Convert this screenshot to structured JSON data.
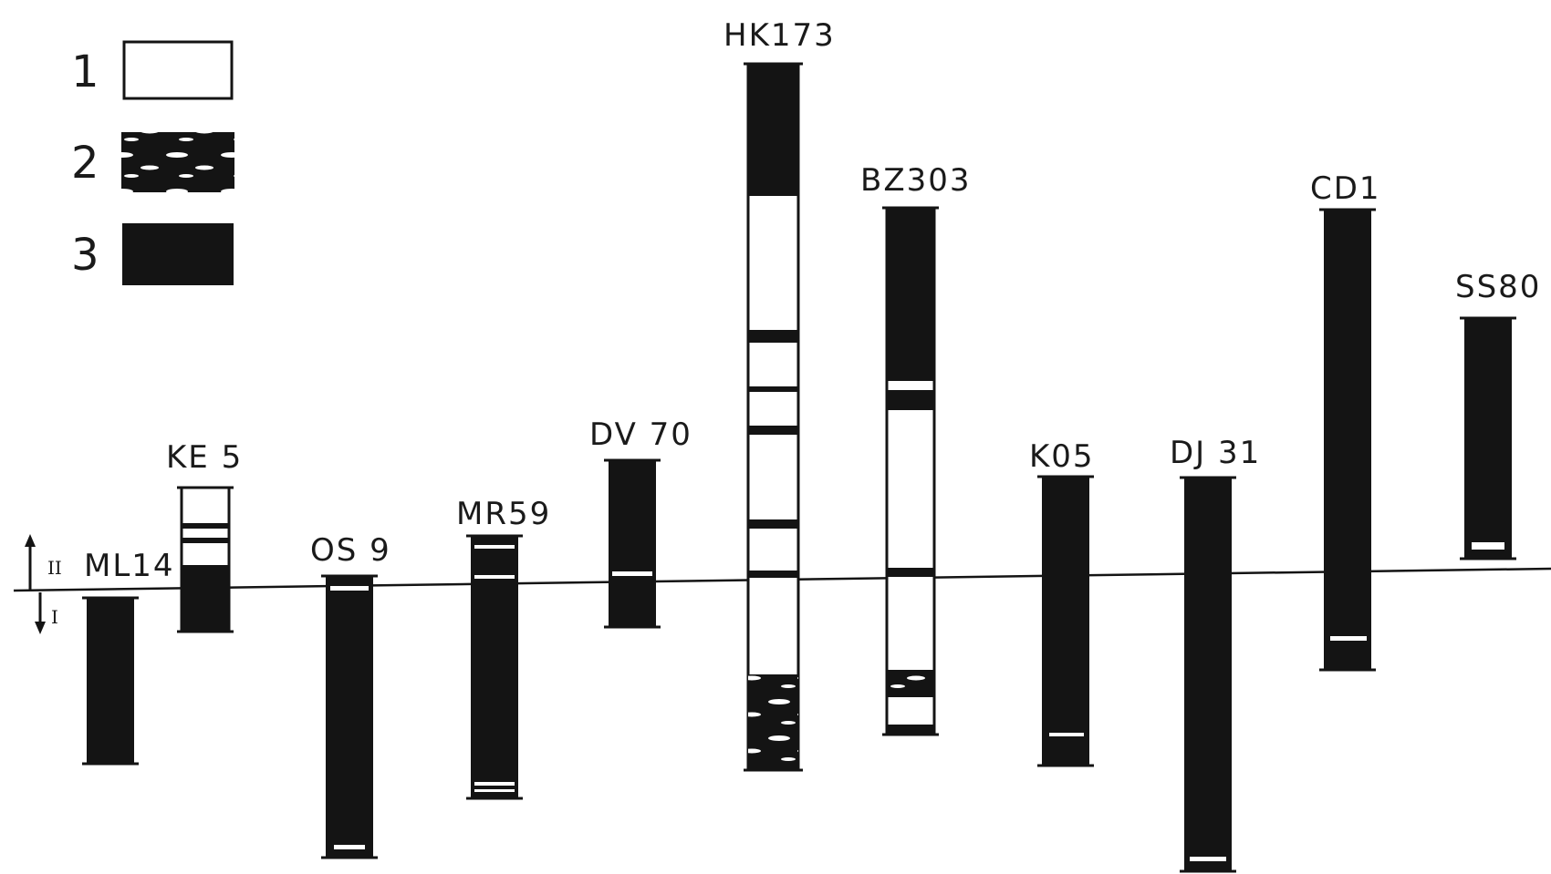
{
  "legend": [
    {
      "number": "1",
      "pattern": "white"
    },
    {
      "number": "2",
      "pattern": "black-with-white-lenses"
    },
    {
      "number": "3",
      "pattern": "black"
    }
  ],
  "side_marker": {
    "upper": "II",
    "lower": "I"
  },
  "colors": {
    "ink": "#141414",
    "paper": "#ffffff"
  },
  "cores": [
    {
      "id": "ML14"
    },
    {
      "id": "KE 5"
    },
    {
      "id": "OS 9"
    },
    {
      "id": "MR59"
    },
    {
      "id": "DV 70"
    },
    {
      "id": "HK173"
    },
    {
      "id": "BZ303"
    },
    {
      "id": "K05"
    },
    {
      "id": "DJ 31"
    },
    {
      "id": "CD1"
    },
    {
      "id": "SS80"
    }
  ]
}
